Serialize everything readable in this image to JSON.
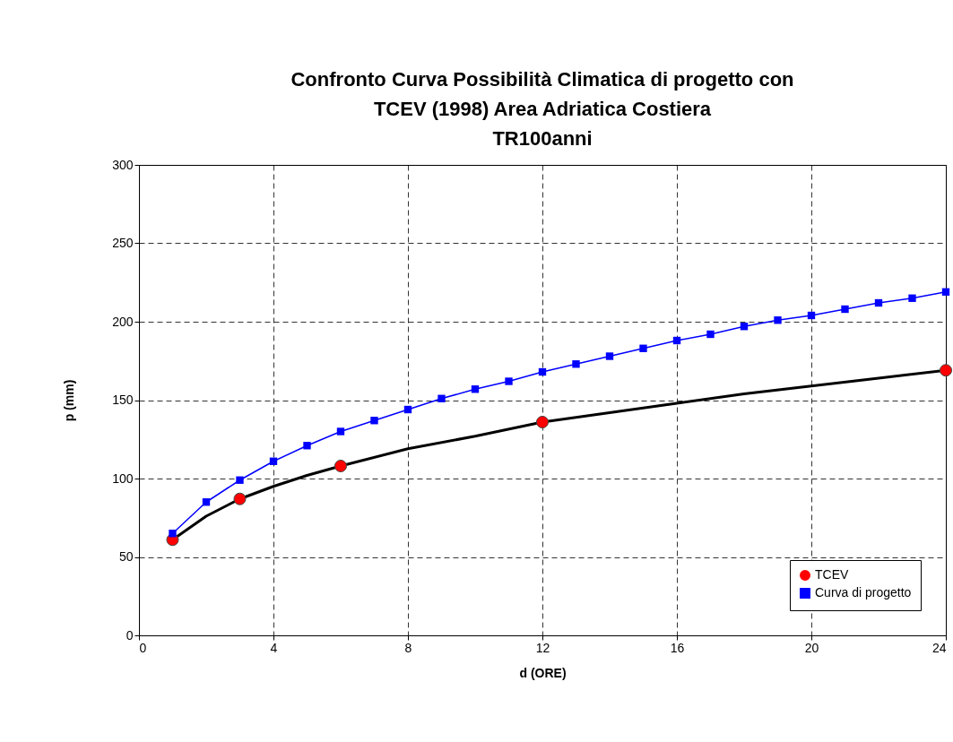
{
  "chart_data": {
    "type": "line",
    "title": "Confronto Curva Possibilità Climatica di progetto con\nTCEV (1998) Area Adriatica Costiera\nTR100anni",
    "xlabel": "d (ORE)",
    "ylabel": "p (mm)",
    "xlim": [
      0,
      24
    ],
    "xticks": [
      0,
      4,
      8,
      12,
      16,
      20,
      24
    ],
    "ylim": [
      0,
      300
    ],
    "yticks": [
      0,
      50,
      100,
      150,
      200,
      250,
      300
    ],
    "grid": true,
    "legend": "bottom right",
    "line_style": "dashed",
    "series": [
      {
        "type": "line",
        "color": "#000000",
        "marker": "none",
        "line_style": "solid",
        "x": [
          1,
          2,
          3,
          4,
          5,
          6,
          8,
          10,
          12,
          14,
          16,
          18,
          20,
          22,
          24
        ],
        "values": [
          61,
          76,
          87,
          95,
          102,
          108,
          119,
          127,
          136,
          142,
          148,
          154,
          159,
          164,
          169
        ]
      },
      {
        "type": "scatter",
        "name": "TCEV",
        "color": "#ff0000",
        "marker": "circle",
        "x": [
          1,
          3,
          6,
          12,
          24
        ],
        "values": [
          61,
          87,
          108,
          136,
          169
        ]
      },
      {
        "type": "line",
        "name": "Curva di progetto",
        "color": "#0000ff",
        "marker": "square",
        "line_style": "solid",
        "x": [
          1,
          2,
          3,
          4,
          5,
          6,
          7,
          8,
          9,
          10,
          11,
          12,
          13,
          14,
          15,
          16,
          17,
          18,
          19,
          20,
          21,
          22,
          23,
          24
        ],
        "values": [
          65,
          85,
          99,
          111,
          121,
          130,
          137,
          144,
          151,
          157,
          162,
          168,
          173,
          178,
          183,
          188,
          192,
          197,
          201,
          204,
          208,
          212,
          215,
          219
        ]
      }
    ]
  }
}
